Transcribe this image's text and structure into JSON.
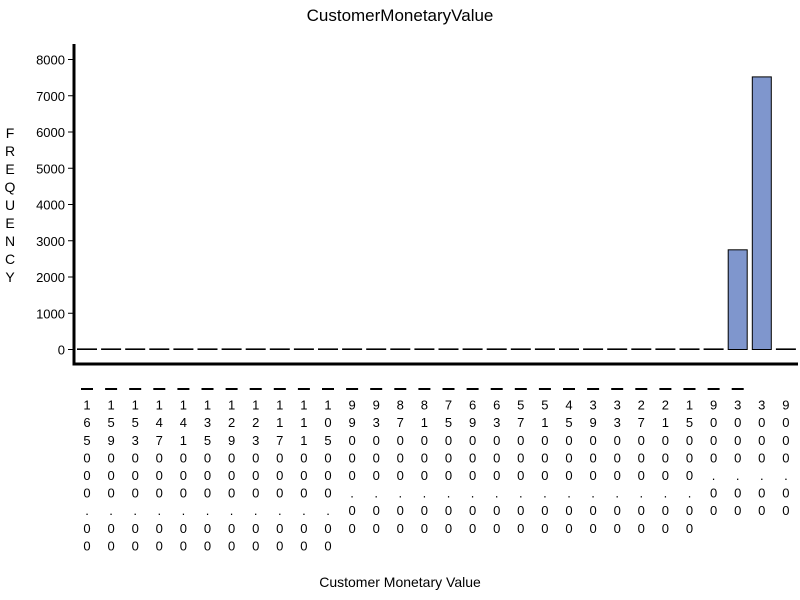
{
  "chart_data": {
    "type": "bar",
    "title": "CustomerMonetaryValue",
    "xlabel": "Customer Monetary Value",
    "ylabel": "FREQUENCY",
    "ylim": [
      -300,
      8300
    ],
    "yticks": [
      0,
      1000,
      2000,
      3000,
      4000,
      5000,
      6000,
      7000,
      8000
    ],
    "grid": false,
    "bar_color": "#7f96cd",
    "categories": [
      "-165000.00",
      "-159000.00",
      "-153000.00",
      "-147000.00",
      "-141000.00",
      "-135000.00",
      "-129000.00",
      "-123000.00",
      "-117000.00",
      "-111000.00",
      "-105000.00",
      "-99000.00",
      "-93000.00",
      "-87000.00",
      "-81000.00",
      "-75000.00",
      "-69000.00",
      "-63000.00",
      "-57000.00",
      "-51000.00",
      "-45000.00",
      "-39000.00",
      "-33000.00",
      "-27000.00",
      "-21000.00",
      "-15000.00",
      "-9000.00",
      "-3000.00",
      "3000.00",
      "9000.00"
    ],
    "values": [
      2,
      0,
      0,
      0,
      0,
      0,
      0,
      0,
      0,
      0,
      0,
      0,
      0,
      0,
      0,
      0,
      0,
      1,
      0,
      2,
      0,
      1,
      0,
      2,
      0,
      3,
      3,
      2750,
      7520,
      5
    ]
  }
}
